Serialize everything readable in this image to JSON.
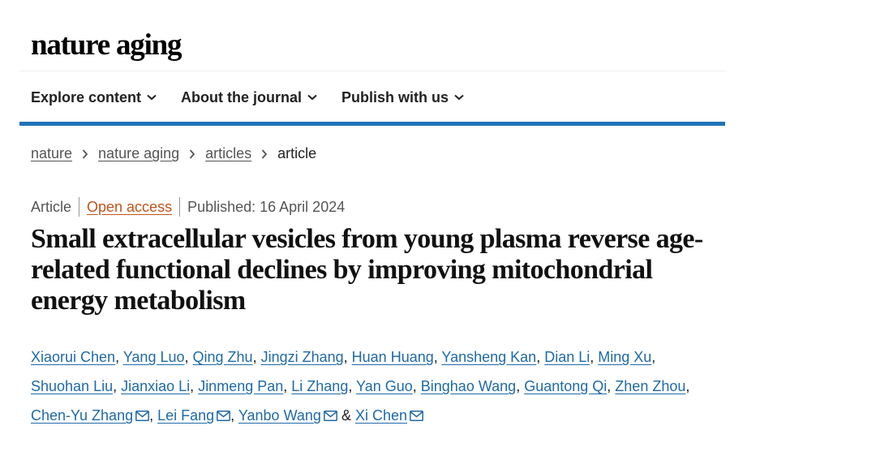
{
  "brand": {
    "logo_text": "nature aging"
  },
  "nav": {
    "items": [
      {
        "label": "Explore content"
      },
      {
        "label": "About the journal"
      },
      {
        "label": "Publish with us"
      }
    ]
  },
  "breadcrumb": {
    "items": [
      "nature",
      "nature aging",
      "articles"
    ],
    "current": "article"
  },
  "article": {
    "type": "Article",
    "open_access": "Open access",
    "published": "Published: 16 April 2024",
    "title": "Small extracellular vesicles from young plasma reverse age-related functional declines by improving mitochondrial energy metabolism",
    "authors": [
      "Xiaorui Chen",
      "Yang Luo",
      "Qing Zhu",
      "Jingzi Zhang",
      "Huan Huang",
      "Yansheng Kan",
      "Dian Li",
      "Ming Xu",
      "Shuohan Liu",
      "Jianxiao Li",
      "Jinmeng Pan",
      "Li Zhang",
      "Yan Guo",
      "Binghao Wang",
      "Guantong Qi",
      "Zhen Zhou",
      "Chen-Yu Zhang",
      "Lei Fang",
      "Yanbo Wang",
      "Xi Chen"
    ]
  },
  "colors": {
    "link": "#1f6aa8",
    "accent_rule": "#1f74b8",
    "open_access": "#c0541b"
  },
  "icons": {
    "nav_chevron": "chevron-down-icon",
    "crumb_separator": "chevron-right-icon",
    "corresponding": "mail-icon"
  }
}
